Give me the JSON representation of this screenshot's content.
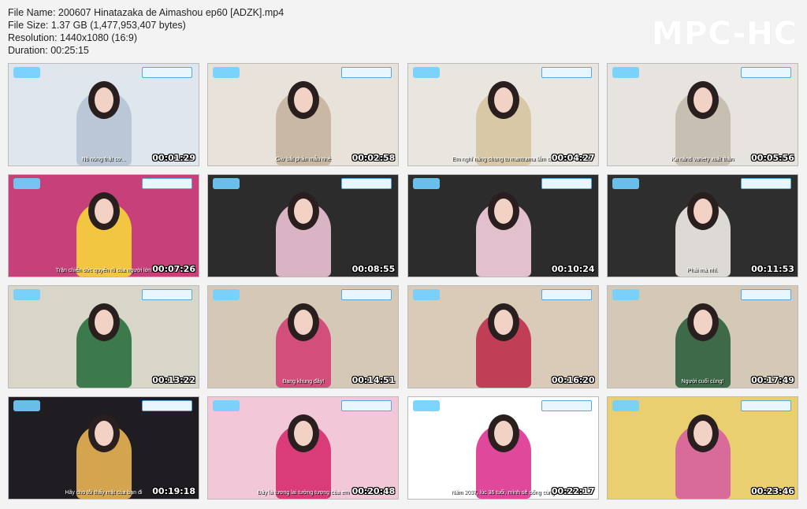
{
  "file_info": {
    "name_line": "File Name: 200607 Hinatazaka de Aimashou ep60 [ADZK].mp4",
    "size_line": "File Size: 1.37 GB (1,477,953,407 bytes)",
    "resolution_line": "Resolution: 1440x1080 (16:9)",
    "duration_line": "Duration: 00:25:15"
  },
  "logo": "MPC-HC",
  "thumbnails": [
    {
      "time": "00:01:29",
      "subtitle": "Nó nóng thật cơ...",
      "bg": "#dfe6ee",
      "accent": "#b9c7d6"
    },
    {
      "time": "00:02:58",
      "subtitle": "Giờ bắt phần mẫu nhé",
      "bg": "#e8e2da",
      "accent": "#c9b9a4"
    },
    {
      "time": "00:04:27",
      "subtitle": "Em nghĩ năng chung tu mantrama lắm cơ",
      "bg": "#e9e6e0",
      "accent": "#d8c8a6"
    },
    {
      "time": "00:05:56",
      "subtitle": "Ka nănd variety xuất thân",
      "bg": "#e7e4df",
      "accent": "#c8bfb3"
    },
    {
      "time": "00:07:26",
      "subtitle": "Trận chiến sức quyến rũ của người lớn",
      "bg": "#c8407a",
      "accent": "#f2c640"
    },
    {
      "time": "00:08:55",
      "subtitle": "",
      "bg": "#2c2c2c",
      "accent": "#d8b4c4"
    },
    {
      "time": "00:10:24",
      "subtitle": "",
      "bg": "#2c2c2c",
      "accent": "#e2c0cd"
    },
    {
      "time": "00:11:53",
      "subtitle": "Phải mà nhỉ.",
      "bg": "#2e2e2e",
      "accent": "#dddad6"
    },
    {
      "time": "00:13:22",
      "subtitle": "",
      "bg": "#d8d6c8",
      "accent": "#3d7a4b"
    },
    {
      "time": "00:14:51",
      "subtitle": "Đang khung đây!",
      "bg": "#d6c8b6",
      "accent": "#d14f7a"
    },
    {
      "time": "00:16:20",
      "subtitle": "",
      "bg": "#d9cbb8",
      "accent": "#c03f56"
    },
    {
      "time": "00:17:49",
      "subtitle": "Người cuối cùng!",
      "bg": "#d4c8b6",
      "accent": "#3f6a4a"
    },
    {
      "time": "00:19:18",
      "subtitle": "Hãy cho tôi thấy mặt của bạn đi",
      "bg": "#1f1d22",
      "accent": "#d4a44f"
    },
    {
      "time": "00:20:48",
      "subtitle": "Đây là tương lai tưởng tượng của em",
      "bg": "#f2c8d8",
      "accent": "#d93c78"
    },
    {
      "time": "00:22:17",
      "subtitle": "Năm 2037, lúc 36 tuổi, mình sẽ sống cùng",
      "bg": "#ffffff",
      "accent": "#e0489b"
    },
    {
      "time": "00:23:46",
      "subtitle": "",
      "bg": "#e9cf6f",
      "accent": "#d96b9a"
    }
  ]
}
